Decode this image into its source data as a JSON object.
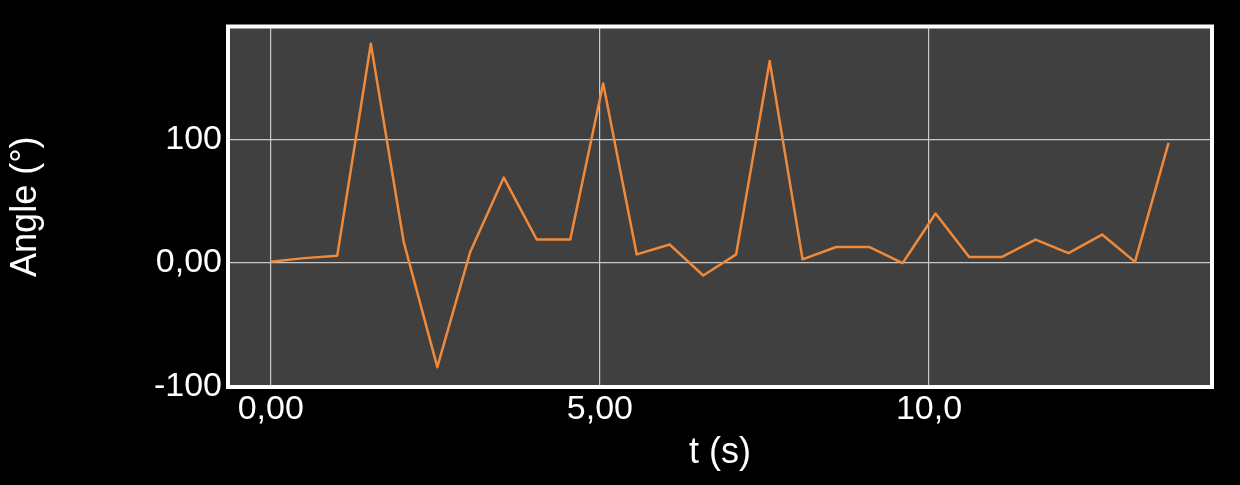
{
  "chart_data": {
    "type": "line",
    "xlabel": "t (s)",
    "ylabel": "Angle (°)",
    "x": [
      0,
      0.51,
      1.01,
      1.52,
      2.02,
      2.53,
      3.03,
      3.54,
      4.04,
      4.55,
      5.05,
      5.56,
      6.06,
      6.57,
      7.07,
      7.58,
      8.08,
      8.59,
      9.09,
      9.6,
      10.1,
      10.61,
      11.11,
      11.62,
      12.12,
      12.63,
      13.13,
      13.64
    ],
    "series": [
      {
        "color": "#f08a3a",
        "values": [
          1,
          4,
          6,
          177,
          17,
          -84,
          9,
          69,
          19,
          19,
          145,
          7,
          15,
          -10,
          7,
          163,
          3,
          13,
          13,
          0,
          40,
          5,
          5,
          19,
          8,
          23,
          1,
          97
        ]
      }
    ],
    "xlim": [
      -0.65,
      14.3
    ],
    "ylim": [
      -100,
      191
    ],
    "xticks": [
      {
        "value": 0,
        "label": "0,00"
      },
      {
        "value": 5,
        "label": "5,00"
      },
      {
        "value": 10,
        "label": "10,0"
      }
    ],
    "yticks": [
      -100,
      {
        "value": 0,
        "label": "0,00"
      },
      100
    ],
    "grid": true,
    "legend": false,
    "marker": "none",
    "line_style": "solid"
  }
}
